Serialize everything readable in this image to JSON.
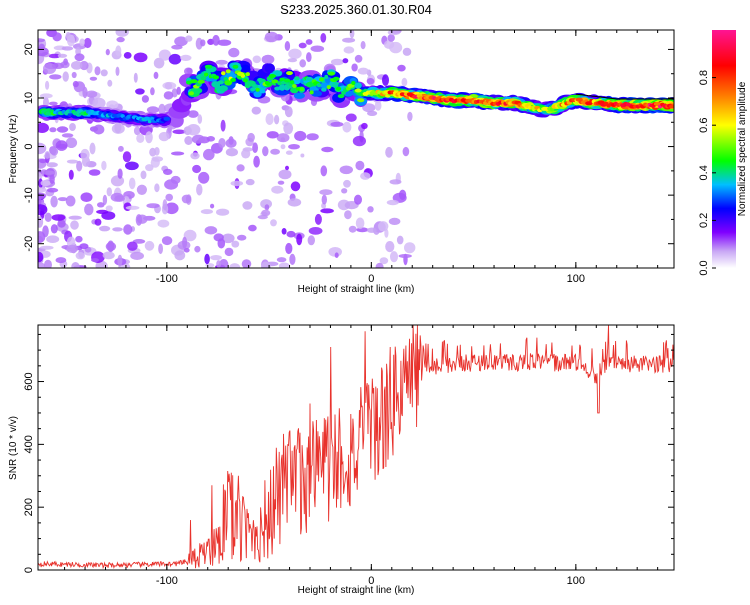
{
  "title": "S233.2025.360.01.30.R04",
  "chart_data": [
    {
      "type": "heatmap",
      "title": "S233.2025.360.01.30.R04",
      "xlabel": "Height of straight line (km)",
      "ylabel": "Frequency (Hz)",
      "xlim": [
        -163,
        148
      ],
      "ylim": [
        -25,
        24
      ],
      "xticks": [
        -100,
        0,
        100
      ],
      "yticks": [
        -20,
        -10,
        0,
        10,
        20
      ],
      "colorbar": {
        "label": "Normalized spectral amplitude",
        "range": [
          0,
          1
        ],
        "ticks": [
          "0.0",
          "0.2",
          "0.4",
          "0.6",
          "0.8"
        ],
        "tick_values": [
          0.0,
          0.2,
          0.4,
          0.6,
          0.8
        ],
        "colors": [
          "#ffffff",
          "#7f00ff",
          "#0000ff",
          "#00bfff",
          "#00ff00",
          "#ffff00",
          "#ff7f00",
          "#ff0000",
          "#ff1493"
        ]
      },
      "ridge": {
        "x": [
          -160,
          -150,
          -140,
          -130,
          -120,
          -110,
          -100,
          -95,
          -90,
          -85,
          -80,
          -75,
          -70,
          -65,
          -60,
          -55,
          -50,
          -45,
          -40,
          -35,
          -30,
          -25,
          -20,
          -15,
          -10,
          -5,
          0,
          10,
          20,
          30,
          40,
          50,
          60,
          70,
          80,
          85,
          90,
          95,
          100,
          110,
          120,
          130,
          140,
          148
        ],
        "y": [
          7,
          7,
          7,
          6.5,
          6,
          5.5,
          5.5,
          5.5,
          12,
          12.5,
          15,
          13,
          14,
          16,
          14,
          12,
          15,
          13,
          14,
          12,
          13,
          12,
          14,
          11,
          12,
          11,
          11,
          11,
          10.5,
          10,
          9.5,
          9.5,
          9,
          9,
          8,
          7.5,
          8,
          9,
          9.5,
          9,
          8.5,
          8.5,
          8.5,
          8.5
        ],
        "amplitude": [
          0.5,
          0.4,
          0.45,
          0.35,
          0.3,
          0.35,
          0.3,
          0.45,
          0.45,
          0.5,
          0.55,
          0.5,
          0.55,
          0.55,
          0.5,
          0.45,
          0.5,
          0.45,
          0.5,
          0.45,
          0.5,
          0.45,
          0.5,
          0.45,
          0.5,
          0.55,
          0.6,
          0.8,
          0.85,
          0.9,
          0.85,
          0.9,
          0.85,
          0.8,
          0.7,
          0.6,
          0.7,
          0.75,
          0.8,
          0.8,
          0.85,
          0.95,
          0.95,
          0.95
        ]
      }
    },
    {
      "type": "line",
      "xlabel": "Height of straight line (km)",
      "ylabel": "SNR (10 * v/v)",
      "xlim": [
        -163,
        148
      ],
      "ylim": [
        0,
        780
      ],
      "xticks": [
        -100,
        0,
        100
      ],
      "yticks": [
        0,
        200,
        400,
        600
      ],
      "color": "#e8322c",
      "series": [
        {
          "name": "SNR",
          "x": [
            -163,
            -150,
            -130,
            -110,
            -95,
            -88,
            -80,
            -75,
            -70,
            -65,
            -60,
            -55,
            -50,
            -45,
            -40,
            -35,
            -30,
            -25,
            -20,
            -15,
            -10,
            -5,
            0,
            5,
            10,
            15,
            20,
            25,
            30,
            40,
            50,
            60,
            70,
            80,
            90,
            100,
            105,
            110,
            115,
            120,
            130,
            140,
            148
          ],
          "y": [
            20,
            18,
            15,
            18,
            20,
            30,
            60,
            120,
            180,
            150,
            110,
            130,
            170,
            230,
            260,
            280,
            310,
            340,
            330,
            370,
            360,
            400,
            420,
            480,
            530,
            590,
            620,
            640,
            650,
            655,
            660,
            665,
            660,
            665,
            660,
            660,
            640,
            620,
            650,
            655,
            655,
            655,
            655
          ]
        }
      ],
      "spikes": {
        "x": [
          -78,
          -65,
          -48,
          -30,
          -20,
          -3,
          116
        ],
        "y": [
          270,
          300,
          330,
          530,
          710,
          760,
          780
        ]
      }
    }
  ]
}
